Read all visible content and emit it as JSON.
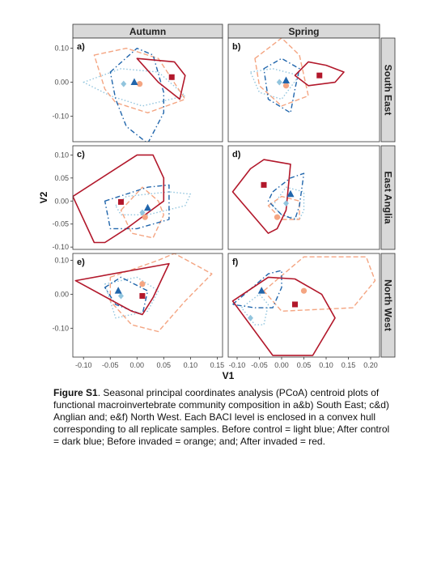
{
  "figure": {
    "caption_label": "Figure S1",
    "caption_text": ". Seasonal principal coordinates analysis (PCoA) centroid plots of functional macroinvertebrate community composition in a&b) South East; c&d) Anglian and; e&f) North West. Each BACI level is enclosed in a convex hull corresponding to all replicate samples. Before control = light blue; After control = dark blue; Before invaded = orange; and; After invaded = red."
  },
  "chart_data": {
    "type": "scatter",
    "xlabel": "V1",
    "ylabel": "V2",
    "col_strips": [
      "Autumn",
      "Spring"
    ],
    "row_strips": [
      "South East",
      "East Anglia",
      "North West"
    ],
    "x_ticks": [
      "-0.10",
      "-0.05",
      "0.00",
      "0.05",
      "0.10",
      "0.15",
      "0.20"
    ],
    "xlim_left": [
      -0.12,
      0.16
    ],
    "xlim_right": [
      -0.12,
      0.22
    ],
    "x_tick_values_left": [
      -0.1,
      -0.05,
      0.0,
      0.05,
      0.1,
      0.15
    ],
    "x_tick_values_right": [
      -0.1,
      -0.05,
      0.0,
      0.05,
      0.1,
      0.15,
      0.2
    ],
    "rows": [
      {
        "ylim": [
          -0.175,
          0.13
        ],
        "y_ticks": [
          -0.1,
          0.0,
          0.1
        ],
        "y_tick_labels": [
          "-0.10",
          "0.00",
          "0.10"
        ]
      },
      {
        "ylim": [
          -0.105,
          0.12
        ],
        "y_ticks": [
          -0.1,
          -0.05,
          0.0,
          0.05,
          0.1
        ],
        "y_tick_labels": [
          "-0.10",
          "-0.05",
          "0.00",
          "0.05",
          "0.10"
        ]
      },
      {
        "ylim": [
          -0.185,
          0.12
        ],
        "y_ticks": [
          -0.1,
          0.0,
          0.1
        ],
        "y_tick_labels": [
          "-0.10",
          "0.00",
          "0.10"
        ]
      }
    ],
    "grid": false,
    "groups": [
      {
        "key": "before_control",
        "color": "#92c5de",
        "marker": "diamond",
        "dash": "dotted"
      },
      {
        "key": "after_control",
        "color": "#2166ac",
        "marker": "triangle",
        "dash": "dashdot"
      },
      {
        "key": "before_invaded",
        "color": "#f4a582",
        "marker": "circle",
        "dash": "dashed"
      },
      {
        "key": "after_invaded",
        "color": "#b2182b",
        "marker": "square",
        "dash": "solid"
      }
    ],
    "panels": [
      {
        "label": "a)",
        "col": 0,
        "row": 0,
        "hulls": {
          "before_control": [
            [
              -0.1,
              0.0
            ],
            [
              -0.03,
              0.04
            ],
            [
              0.04,
              0.03
            ],
            [
              0.09,
              -0.04
            ],
            [
              0.01,
              -0.07
            ],
            [
              -0.05,
              -0.04
            ]
          ],
          "after_control": [
            [
              -0.05,
              0.03
            ],
            [
              0.0,
              0.1
            ],
            [
              0.03,
              0.08
            ],
            [
              0.05,
              -0.03
            ],
            [
              0.05,
              -0.09
            ],
            [
              0.02,
              -0.18
            ],
            [
              -0.02,
              -0.13
            ],
            [
              -0.04,
              -0.05
            ]
          ],
          "before_invaded": [
            [
              -0.08,
              0.08
            ],
            [
              -0.02,
              0.1
            ],
            [
              0.04,
              0.07
            ],
            [
              0.09,
              -0.05
            ],
            [
              0.02,
              -0.09
            ],
            [
              -0.04,
              -0.06
            ],
            [
              -0.06,
              -0.02
            ]
          ],
          "after_invaded": [
            [
              0.0,
              0.07
            ],
            [
              0.07,
              0.06
            ],
            [
              0.09,
              0.02
            ],
            [
              0.08,
              -0.05
            ],
            [
              0.04,
              0.0
            ]
          ]
        },
        "centroids": {
          "before_control": [
            -0.025,
            -0.005
          ],
          "after_control": [
            -0.005,
            0.0
          ],
          "before_invaded": [
            0.005,
            -0.005
          ],
          "after_invaded": [
            0.065,
            0.015
          ]
        }
      },
      {
        "label": "b)",
        "col": 1,
        "row": 0,
        "hulls": {
          "before_control": [
            [
              -0.07,
              0.03
            ],
            [
              -0.02,
              0.04
            ],
            [
              0.04,
              0.02
            ],
            [
              0.0,
              -0.05
            ],
            [
              -0.05,
              -0.03
            ]
          ],
          "after_control": [
            [
              -0.04,
              0.04
            ],
            [
              0.0,
              0.07
            ],
            [
              0.04,
              0.04
            ],
            [
              0.03,
              -0.02
            ],
            [
              0.02,
              -0.09
            ],
            [
              -0.03,
              -0.05
            ]
          ],
          "before_invaded": [
            [
              -0.06,
              0.07
            ],
            [
              0.0,
              0.13
            ],
            [
              0.04,
              0.08
            ],
            [
              0.06,
              -0.04
            ],
            [
              0.0,
              -0.07
            ],
            [
              -0.05,
              -0.01
            ]
          ],
          "after_invaded": [
            [
              0.03,
              0.02
            ],
            [
              0.06,
              0.06
            ],
            [
              0.1,
              0.05
            ],
            [
              0.14,
              0.03
            ],
            [
              0.12,
              0.0
            ],
            [
              0.06,
              -0.01
            ]
          ]
        },
        "centroids": {
          "before_control": [
            -0.005,
            0.0
          ],
          "after_control": [
            0.01,
            0.005
          ],
          "before_invaded": [
            0.01,
            -0.01
          ],
          "after_invaded": [
            0.085,
            0.02
          ]
        }
      },
      {
        "label": "c)",
        "col": 0,
        "row": 1,
        "hulls": {
          "before_control": [
            [
              -0.04,
              -0.01
            ],
            [
              -0.02,
              0.01
            ],
            [
              0.06,
              0.02
            ],
            [
              0.1,
              0.015
            ],
            [
              0.09,
              -0.01
            ],
            [
              0.02,
              -0.03
            ],
            [
              -0.03,
              -0.03
            ]
          ],
          "after_control": [
            [
              -0.06,
              0.0
            ],
            [
              0.02,
              0.03
            ],
            [
              0.06,
              0.035
            ],
            [
              0.06,
              -0.04
            ],
            [
              0.0,
              -0.06
            ],
            [
              -0.05,
              -0.06
            ]
          ],
          "before_invaded": [
            [
              -0.03,
              -0.02
            ],
            [
              0.01,
              0.03
            ],
            [
              0.04,
              0.0
            ],
            [
              0.05,
              -0.03
            ],
            [
              0.03,
              -0.08
            ],
            [
              -0.01,
              -0.07
            ]
          ],
          "after_invaded": [
            [
              -0.12,
              0.01
            ],
            [
              0.0,
              0.1
            ],
            [
              0.03,
              0.1
            ],
            [
              0.05,
              0.05
            ],
            [
              0.05,
              0.0
            ],
            [
              -0.02,
              -0.06
            ],
            [
              -0.06,
              -0.09
            ],
            [
              -0.08,
              -0.09
            ]
          ]
        },
        "centroids": {
          "before_control": [
            0.01,
            -0.025
          ],
          "after_control": [
            0.02,
            -0.015
          ],
          "before_invaded": [
            0.015,
            -0.035
          ],
          "after_invaded": [
            -0.03,
            -0.002
          ]
        }
      },
      {
        "label": "d)",
        "col": 1,
        "row": 1,
        "hulls": {
          "before_control": [
            [
              -0.02,
              -0.01
            ],
            [
              0.01,
              0.03
            ],
            [
              0.05,
              0.02
            ],
            [
              0.05,
              -0.02
            ],
            [
              0.04,
              -0.04
            ],
            [
              0.0,
              -0.03
            ]
          ],
          "after_control": [
            [
              -0.02,
              0.02
            ],
            [
              0.02,
              0.05
            ],
            [
              0.05,
              0.06
            ],
            [
              0.04,
              -0.01
            ],
            [
              0.03,
              -0.04
            ],
            [
              0.0,
              -0.03
            ],
            [
              -0.03,
              0.0
            ]
          ],
          "before_invaded": [
            [
              -0.03,
              -0.01
            ],
            [
              0.0,
              0.01
            ],
            [
              0.04,
              0.0
            ],
            [
              0.04,
              -0.04
            ],
            [
              0.0,
              -0.04
            ]
          ],
          "after_invaded": [
            [
              -0.11,
              0.02
            ],
            [
              -0.07,
              0.07
            ],
            [
              -0.04,
              0.09
            ],
            [
              0.02,
              0.08
            ],
            [
              0.01,
              -0.02
            ],
            [
              -0.01,
              -0.06
            ],
            [
              -0.03,
              -0.07
            ]
          ]
        },
        "centroids": {
          "before_control": [
            0.01,
            -0.005
          ],
          "after_control": [
            0.02,
            0.015
          ],
          "before_invaded": [
            -0.01,
            -0.035
          ],
          "after_invaded": [
            -0.04,
            0.035
          ]
        }
      },
      {
        "label": "e)",
        "col": 0,
        "row": 2,
        "hulls": {
          "before_control": [
            [
              -0.06,
              0.03
            ],
            [
              0.0,
              0.05
            ],
            [
              0.04,
              0.01
            ],
            [
              0.02,
              -0.05
            ],
            [
              -0.04,
              -0.07
            ],
            [
              -0.05,
              -0.02
            ]
          ],
          "after_control": [
            [
              -0.06,
              0.02
            ],
            [
              -0.03,
              0.05
            ],
            [
              0.02,
              0.01
            ],
            [
              0.01,
              -0.06
            ],
            [
              -0.04,
              -0.03
            ]
          ],
          "before_invaded": [
            [
              -0.05,
              0.05
            ],
            [
              0.04,
              0.1
            ],
            [
              0.07,
              0.12
            ],
            [
              0.14,
              0.06
            ],
            [
              0.09,
              -0.02
            ],
            [
              0.04,
              -0.11
            ],
            [
              -0.01,
              -0.09
            ],
            [
              -0.05,
              -0.02
            ]
          ],
          "after_invaded": [
            [
              -0.115,
              0.04
            ],
            [
              0.06,
              0.09
            ],
            [
              0.03,
              -0.01
            ],
            [
              0.01,
              -0.06
            ],
            [
              -0.01,
              -0.05
            ]
          ]
        },
        "centroids": {
          "before_control": [
            -0.03,
            -0.005
          ],
          "after_control": [
            -0.035,
            0.01
          ],
          "before_invaded": [
            0.01,
            0.03
          ],
          "after_invaded": [
            0.01,
            -0.005
          ]
        }
      },
      {
        "label": "f)",
        "col": 1,
        "row": 2,
        "hulls": {
          "before_control": [
            [
              -0.09,
              -0.04
            ],
            [
              -0.05,
              0.0
            ],
            [
              -0.03,
              -0.03
            ],
            [
              -0.04,
              -0.09
            ],
            [
              -0.06,
              -0.09
            ]
          ],
          "after_control": [
            [
              -0.11,
              -0.03
            ],
            [
              -0.03,
              0.06
            ],
            [
              0.0,
              0.07
            ],
            [
              0.0,
              0.02
            ],
            [
              -0.02,
              -0.04
            ],
            [
              -0.06,
              -0.04
            ]
          ],
          "before_invaded": [
            [
              -0.04,
              0.01
            ],
            [
              0.05,
              0.11
            ],
            [
              0.19,
              0.11
            ],
            [
              0.21,
              0.04
            ],
            [
              0.16,
              -0.04
            ],
            [
              0.0,
              -0.05
            ]
          ],
          "after_invaded": [
            [
              -0.11,
              -0.02
            ],
            [
              -0.03,
              0.05
            ],
            [
              0.03,
              0.045
            ],
            [
              0.09,
              0.0
            ],
            [
              0.12,
              -0.07
            ],
            [
              0.07,
              -0.18
            ],
            [
              -0.02,
              -0.18
            ]
          ]
        },
        "centroids": {
          "before_control": [
            -0.07,
            -0.07
          ],
          "after_control": [
            -0.045,
            0.01
          ],
          "before_invaded": [
            0.05,
            0.01
          ],
          "after_invaded": [
            0.03,
            -0.03
          ]
        }
      }
    ]
  }
}
